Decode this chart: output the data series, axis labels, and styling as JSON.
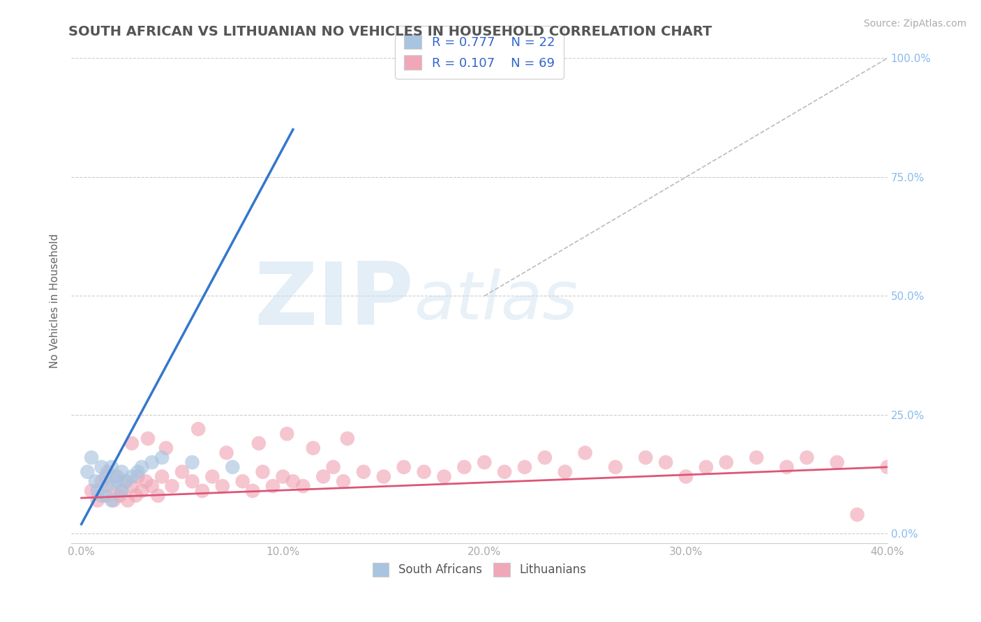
{
  "title": "SOUTH AFRICAN VS LITHUANIAN NO VEHICLES IN HOUSEHOLD CORRELATION CHART",
  "source": "Source: ZipAtlas.com",
  "ylabel": "No Vehicles in Household",
  "xlabel_vals": [
    0.0,
    10.0,
    20.0,
    30.0,
    40.0
  ],
  "ylabel_vals": [
    0.0,
    25.0,
    50.0,
    75.0,
    100.0
  ],
  "xlim": [
    -0.5,
    40.0
  ],
  "ylim": [
    -2.0,
    100.0
  ],
  "legend_labels": [
    "South Africans",
    "Lithuanians"
  ],
  "legend_R": [
    "R = 0.777",
    "R = 0.107"
  ],
  "legend_N": [
    "N = 22",
    "N = 69"
  ],
  "sa_color": "#a8c4e0",
  "lt_color": "#f0a8b8",
  "sa_line_color": "#3377cc",
  "lt_line_color": "#dd5577",
  "watermark_zip": "ZIP",
  "watermark_atlas": "atlas",
  "title_color": "#555555",
  "title_fontsize": 14,
  "sa_scatter_x": [
    0.3,
    0.5,
    0.7,
    0.8,
    1.0,
    1.0,
    1.2,
    1.3,
    1.5,
    1.5,
    1.7,
    1.8,
    2.0,
    2.0,
    2.2,
    2.5,
    2.8,
    3.0,
    3.5,
    4.0,
    5.5,
    7.5
  ],
  "sa_scatter_y": [
    13.0,
    16.0,
    11.0,
    9.0,
    14.0,
    8.0,
    12.0,
    10.0,
    14.0,
    7.0,
    12.0,
    11.0,
    13.0,
    9.0,
    11.0,
    12.0,
    13.0,
    14.0,
    15.0,
    16.0,
    15.0,
    14.0
  ],
  "lt_scatter_x": [
    0.5,
    0.8,
    1.0,
    1.2,
    1.3,
    1.5,
    1.6,
    1.8,
    1.9,
    2.0,
    2.2,
    2.3,
    2.5,
    2.7,
    2.8,
    3.0,
    3.2,
    3.5,
    3.8,
    4.0,
    4.5,
    5.0,
    5.5,
    6.0,
    6.5,
    7.0,
    8.0,
    8.5,
    9.0,
    9.5,
    10.0,
    10.5,
    11.0,
    12.0,
    12.5,
    13.0,
    14.0,
    15.0,
    16.0,
    17.0,
    18.0,
    19.0,
    20.0,
    21.0,
    22.0,
    23.0,
    24.0,
    25.0,
    26.5,
    28.0,
    29.0,
    30.0,
    31.0,
    32.0,
    33.5,
    35.0,
    36.0,
    37.5,
    38.5,
    40.0,
    2.5,
    3.3,
    4.2,
    5.8,
    7.2,
    8.8,
    10.2,
    11.5,
    13.2
  ],
  "lt_scatter_y": [
    9.0,
    7.0,
    11.0,
    8.0,
    13.0,
    10.0,
    7.0,
    12.0,
    8.0,
    9.0,
    11.0,
    7.0,
    10.0,
    8.0,
    12.0,
    9.0,
    11.0,
    10.0,
    8.0,
    12.0,
    10.0,
    13.0,
    11.0,
    9.0,
    12.0,
    10.0,
    11.0,
    9.0,
    13.0,
    10.0,
    12.0,
    11.0,
    10.0,
    12.0,
    14.0,
    11.0,
    13.0,
    12.0,
    14.0,
    13.0,
    12.0,
    14.0,
    15.0,
    13.0,
    14.0,
    16.0,
    13.0,
    17.0,
    14.0,
    16.0,
    15.0,
    12.0,
    14.0,
    15.0,
    16.0,
    14.0,
    16.0,
    15.0,
    4.0,
    14.0,
    19.0,
    20.0,
    18.0,
    22.0,
    17.0,
    19.0,
    21.0,
    18.0,
    20.0
  ],
  "sa_line_x0": 0.0,
  "sa_line_y0": 2.0,
  "sa_line_x1": 10.5,
  "sa_line_y1": 85.0,
  "lt_line_x0": 0.0,
  "lt_line_y0": 7.5,
  "lt_line_x1": 40.0,
  "lt_line_y1": 14.0,
  "diag_x0": 20.0,
  "diag_y0": 50.0,
  "diag_x1": 40.0,
  "diag_y1": 100.0,
  "bg_color": "#ffffff",
  "grid_color": "#cccccc",
  "right_tick_color": "#88bbee",
  "xtick_color": "#aaaaaa"
}
